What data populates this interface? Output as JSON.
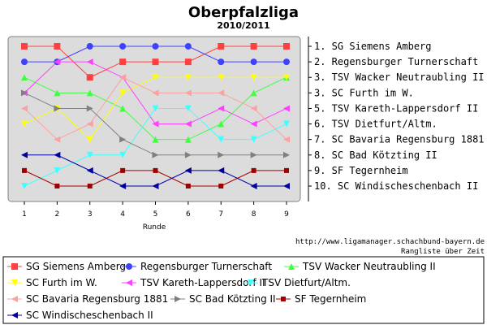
{
  "chart_data": {
    "type": "line",
    "title": "Oberpfalzliga",
    "subtitle": "2010/2011",
    "xlabel": "Runde",
    "x": [
      1,
      2,
      3,
      4,
      5,
      6,
      7,
      8,
      9
    ],
    "ylim": [
      10,
      1
    ],
    "y_reversed": true,
    "grid": false,
    "legend_position": "bottom",
    "rank_labels": [
      "1. SG Siemens Amberg",
      "2. Regensburger Turnerschaft",
      "3. TSV Wacker Neutraubling II",
      "3. SC Furth im W.",
      "5. TSV Kareth-Lappersdorf II",
      "6. TSV Dietfurt/Altm.",
      "7. SC Bavaria Regensburg 1881",
      "8. SC Bad Kötzting II",
      "9. SF Tegernheim",
      "10. SC Windischeschenbach II"
    ],
    "series": [
      {
        "name": "SG Siemens Amberg",
        "color": "#ff4040",
        "marker": "square",
        "values": [
          1,
          1,
          3,
          2,
          2,
          2,
          1,
          1,
          1
        ]
      },
      {
        "name": "Regensburger Turnerschaft",
        "color": "#4040ff",
        "marker": "circle",
        "values": [
          2,
          2,
          1,
          1,
          1,
          1,
          2,
          2,
          2
        ]
      },
      {
        "name": "TSV Wacker Neutraubling II",
        "color": "#40ff40",
        "marker": "triangle-up",
        "values": [
          3,
          4,
          4,
          5,
          7,
          7,
          6,
          4,
          3
        ]
      },
      {
        "name": "SC Furth im W.",
        "color": "#ffff00",
        "marker": "triangle-down",
        "values": [
          6,
          5,
          7,
          4,
          3,
          3,
          3,
          3,
          3
        ]
      },
      {
        "name": "TSV Kareth-Lappersdorf II",
        "color": "#ff40ff",
        "marker": "triangle-left",
        "values": [
          4,
          2,
          2,
          3,
          6,
          6,
          5,
          6,
          5
        ]
      },
      {
        "name": "TSV Dietfurt/Altm.",
        "color": "#40ffff",
        "marker": "triangle-down",
        "values": [
          10,
          9,
          8,
          8,
          5,
          5,
          7,
          7,
          6
        ]
      },
      {
        "name": "SC Bavaria Regensburg 1881",
        "color": "#ffa0a0",
        "marker": "triangle-left",
        "values": [
          5,
          7,
          6,
          3,
          4,
          4,
          4,
          5,
          7
        ]
      },
      {
        "name": "SC Bad Kötzting II",
        "color": "#808080",
        "marker": "triangle-right",
        "values": [
          4,
          5,
          5,
          7,
          8,
          8,
          8,
          8,
          8
        ]
      },
      {
        "name": "SF Tegernheim",
        "color": "#a00000",
        "marker": "square-small",
        "values": [
          9,
          10,
          10,
          9,
          9,
          10,
          10,
          9,
          9
        ]
      },
      {
        "name": "SC Windischeschenbach II",
        "color": "#0000a0",
        "marker": "triangle-left",
        "values": [
          8,
          8,
          9,
          10,
          10,
          9,
          9,
          10,
          10
        ]
      }
    ]
  },
  "credit": {
    "url": "http://www.ligamanager.schachbund-bayern.de",
    "caption": "Rangliste über Zeit"
  }
}
